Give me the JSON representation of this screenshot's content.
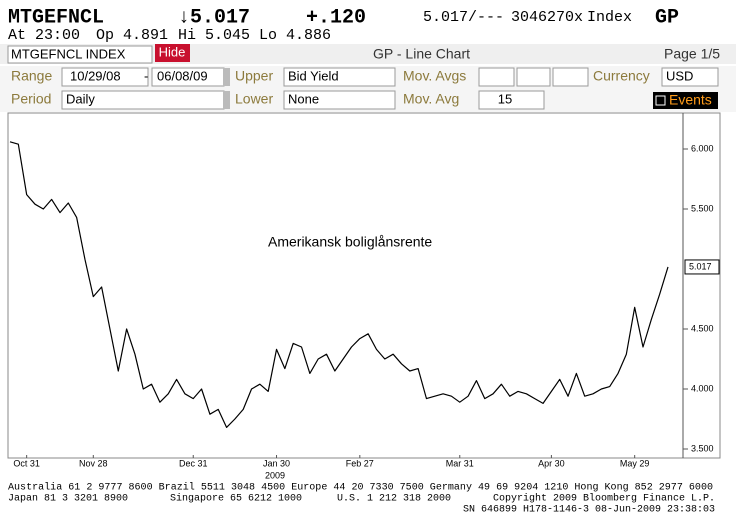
{
  "header": {
    "ticker": "MTGEFNCL",
    "last": "↓5.017",
    "change": "+.120",
    "bid_ask": "5.017/---",
    "volume": "3046270x",
    "market": "Index",
    "function": "GP",
    "time": "At 23:00",
    "open": "Op 4.891",
    "high": "Hi 5.045",
    "low": "Lo 4.886"
  },
  "toolbar": {
    "security": "MTGEFNCL INDEX",
    "hide": "Hide",
    "screen_title": "GP - Line Chart",
    "page": "Page 1/5",
    "range_label": "Range",
    "range_start": "10/29/08",
    "range_sep": "-",
    "range_end": "06/08/09",
    "upper_label": "Upper",
    "upper": "Bid Yield",
    "mov_avgs_label": "Mov. Avgs",
    "currency_label": "Currency",
    "currency": "USD",
    "period_label": "Period",
    "period": "Daily",
    "lower_label": "Lower",
    "lower": "None",
    "mov_avg_label": "Mov. Avg",
    "mov_avg": "15",
    "events": "Events"
  },
  "chart_data": {
    "type": "line",
    "annotation": "Amerikansk boliglånsrente",
    "year_label": "2009",
    "color": "#000000",
    "categories": [
      null,
      null,
      "Oct 31",
      null,
      null,
      null,
      null,
      null,
      null,
      null,
      "Nov 28",
      null,
      null,
      null,
      null,
      null,
      null,
      null,
      null,
      null,
      null,
      null,
      "Dec 31",
      null,
      null,
      null,
      null,
      null,
      null,
      null,
      null,
      null,
      "Jan 30",
      null,
      null,
      null,
      null,
      null,
      null,
      null,
      null,
      null,
      "Feb 27",
      null,
      null,
      null,
      null,
      null,
      null,
      null,
      null,
      null,
      null,
      null,
      "Mar 31",
      null,
      null,
      null,
      null,
      null,
      null,
      null,
      null,
      null,
      null,
      "Apr 30",
      null,
      null,
      null,
      null,
      null,
      null,
      null,
      null,
      null,
      "May 29",
      null,
      null,
      null,
      null
    ],
    "values": [
      6.06,
      6.04,
      5.62,
      5.54,
      5.5,
      5.58,
      5.47,
      5.55,
      5.43,
      5.08,
      4.77,
      4.85,
      4.5,
      4.15,
      4.5,
      4.29,
      4.0,
      4.04,
      3.89,
      3.96,
      4.08,
      3.96,
      3.92,
      4.0,
      3.79,
      3.83,
      3.68,
      3.75,
      3.83,
      4.0,
      4.04,
      3.98,
      4.33,
      4.17,
      4.38,
      4.35,
      4.13,
      4.25,
      4.29,
      4.15,
      4.25,
      4.35,
      4.42,
      4.46,
      4.33,
      4.25,
      4.29,
      4.21,
      4.15,
      4.17,
      3.92,
      3.94,
      3.96,
      3.94,
      3.89,
      3.94,
      4.07,
      3.92,
      3.96,
      4.04,
      3.94,
      3.98,
      3.96,
      3.92,
      3.88,
      3.98,
      4.08,
      3.94,
      4.13,
      3.94,
      3.96,
      4.0,
      4.02,
      4.13,
      4.29,
      4.68,
      4.35,
      4.58,
      4.79,
      5.017
    ],
    "ylim": [
      3.45,
      6.3
    ],
    "yticks": [
      {
        "value": 3.5,
        "label": "3.500"
      },
      {
        "value": 4,
        "label": "4.000"
      },
      {
        "value": 4.5,
        "label": "4.500"
      },
      {
        "value": 5.5,
        "label": "5.500"
      },
      {
        "value": 6,
        "label": "6.000"
      }
    ],
    "grid": false
  },
  "footer": {
    "line1": "Australia 61 2 9777 8600 Brazil 5511 3048 4500 Europe 44 20 7330 7500 Germany 49 69 9204 1210 Hong Kong 852 2977 6000",
    "japan": "Japan 81 3 3201 8900",
    "singapore": "Singapore 65 6212 1000",
    "us": "U.S. 1 212 318 2000",
    "copyright": "Copyright 2009 Bloomberg Finance L.P.",
    "session": "SN 646899 H178-1146-3 08-Jun-2009 23:38:03"
  }
}
